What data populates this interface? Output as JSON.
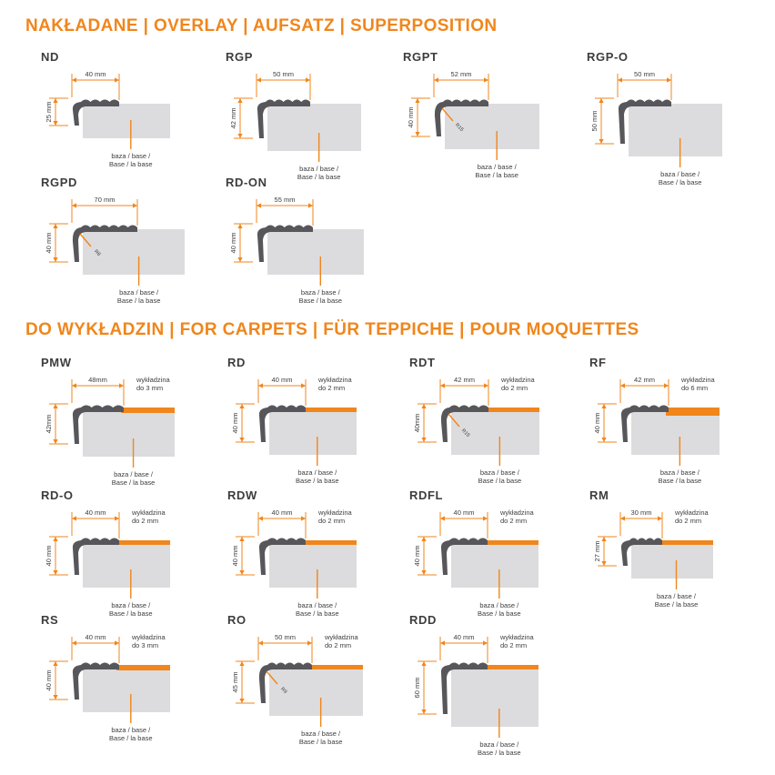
{
  "colors": {
    "accent": "#F0861C",
    "profile": "#57575B",
    "base": "#DCDCDE",
    "text": "#3D3D3D"
  },
  "base_label": {
    "line1": "baza / base /",
    "line2": "Base / la base"
  },
  "sections": [
    {
      "title": "NAKŁADANE | OVERLAY | AUFSATZ | SUPERPOSITION",
      "rows": [
        [
          {
            "name": "ND",
            "width_label": "40 mm",
            "height_label": "25 mm",
            "width_mm": 40,
            "height_mm": 25,
            "radius_label": null,
            "carpet": null
          },
          {
            "name": "RGP",
            "width_label": "50 mm",
            "height_label": "42 mm",
            "width_mm": 50,
            "height_mm": 42,
            "radius_label": null,
            "carpet": null
          },
          {
            "name": "RGPT",
            "width_label": "52 mm",
            "height_label": "40 mm",
            "width_mm": 52,
            "height_mm": 40,
            "radius_label": "R15",
            "carpet": null
          },
          {
            "name": "RGP-O",
            "width_label": "50 mm",
            "height_label": "50 mm",
            "width_mm": 50,
            "height_mm": 50,
            "radius_label": null,
            "carpet": null
          }
        ],
        [
          {
            "name": "RGPD",
            "width_label": "70 mm",
            "height_label": "40 mm",
            "width_mm": 70,
            "height_mm": 40,
            "radius_label": "R8",
            "carpet": null
          },
          {
            "name": "RD-ON",
            "width_label": "55 mm",
            "height_label": "40 mm",
            "width_mm": 55,
            "height_mm": 40,
            "radius_label": null,
            "carpet": null
          }
        ]
      ]
    },
    {
      "title": "DO WYKŁADZIN | FOR CARPETS | FÜR TEPPICHE | POUR MOQUETTES",
      "rows": [
        [
          {
            "name": "PMW",
            "width_label": "48mm",
            "height_label": "42mm",
            "width_mm": 48,
            "height_mm": 42,
            "radius_label": null,
            "carpet": {
              "line1": "wykładzina",
              "line2": "do 3 mm",
              "mm": 3
            }
          },
          {
            "name": "RD",
            "width_label": "40 mm",
            "height_label": "40 mm",
            "width_mm": 40,
            "height_mm": 40,
            "radius_label": null,
            "carpet": {
              "line1": "wykładzina",
              "line2": "do 2 mm",
              "mm": 2
            }
          },
          {
            "name": "RDT",
            "width_label": "42 mm",
            "height_label": "40mm",
            "width_mm": 42,
            "height_mm": 40,
            "radius_label": "R15",
            "carpet": {
              "line1": "wykładzina",
              "line2": "do 2 mm",
              "mm": 2
            }
          },
          {
            "name": "RF",
            "width_label": "42 mm",
            "height_label": "40 mm",
            "width_mm": 42,
            "height_mm": 40,
            "radius_label": null,
            "carpet": {
              "line1": "wykładzina",
              "line2": "do 6 mm",
              "mm": 6
            }
          }
        ],
        [
          {
            "name": "RD-O",
            "width_label": "40 mm",
            "height_label": "40 mm",
            "width_mm": 40,
            "height_mm": 40,
            "radius_label": null,
            "carpet": {
              "line1": "wykładzina",
              "line2": "do 2 mm",
              "mm": 2
            }
          },
          {
            "name": "RDW",
            "width_label": "40 mm",
            "height_label": "40 mm",
            "width_mm": 40,
            "height_mm": 40,
            "radius_label": null,
            "carpet": {
              "line1": "wykładzina",
              "line2": "do 2 mm",
              "mm": 2
            }
          },
          {
            "name": "RDFL",
            "width_label": "40 mm",
            "height_label": "40 mm",
            "width_mm": 40,
            "height_mm": 40,
            "radius_label": null,
            "carpet": {
              "line1": "wykładzina",
              "line2": "do 2 mm",
              "mm": 2
            }
          },
          {
            "name": "RM",
            "width_label": "30 mm",
            "height_label": "27 mm",
            "width_mm": 30,
            "height_mm": 27,
            "radius_label": null,
            "carpet": {
              "line1": "wykładzina",
              "line2": "do 2 mm",
              "mm": 2
            }
          }
        ],
        [
          {
            "name": "RS",
            "width_label": "40 mm",
            "height_label": "40 mm",
            "width_mm": 40,
            "height_mm": 40,
            "radius_label": null,
            "carpet": {
              "line1": "wykładzina",
              "line2": "do 3 mm",
              "mm": 3
            }
          },
          {
            "name": "RO",
            "width_label": "50 mm",
            "height_label": "45 mm",
            "width_mm": 50,
            "height_mm": 45,
            "radius_label": "R9",
            "carpet": {
              "line1": "wykładzina",
              "line2": "do 2 mm",
              "mm": 2
            }
          },
          {
            "name": "RDD",
            "width_label": "40 mm",
            "height_label": "60 mm",
            "width_mm": 40,
            "height_mm": 60,
            "radius_label": null,
            "carpet": {
              "line1": "wykładzina",
              "line2": "do 2 mm",
              "mm": 2
            }
          }
        ]
      ]
    }
  ]
}
